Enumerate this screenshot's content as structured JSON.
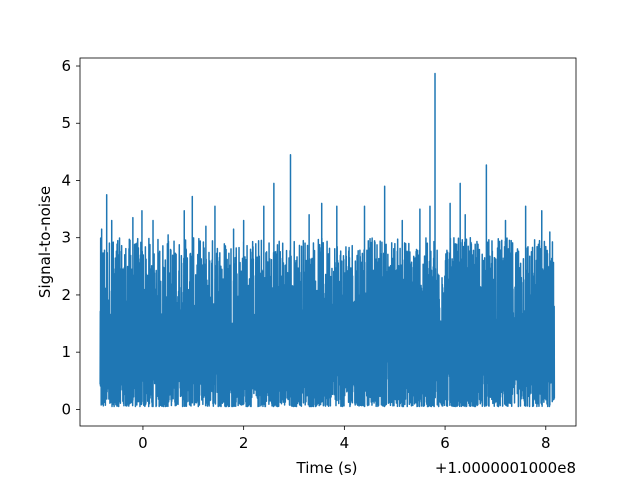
{
  "chart_data": {
    "type": "line",
    "xlabel": "Time (s)",
    "ylabel": "Signal-to-noise",
    "x_offset_label": "+1.0000001000e8",
    "xlim": [
      -1.25,
      8.6
    ],
    "ylim": [
      -0.29,
      6.14
    ],
    "x_range": [
      -0.85,
      8.17
    ],
    "noise_band": [
      0.05,
      2.6
    ],
    "xticks": [
      0,
      2,
      4,
      6,
      8
    ],
    "yticks": [
      0,
      1,
      2,
      3,
      4,
      5,
      6
    ],
    "grid": false,
    "line_color": "#1f77b4",
    "series": [
      {
        "peaks": [
          {
            "x": -0.82,
            "y": 3.15
          },
          {
            "x": -0.72,
            "y": 3.75
          },
          {
            "x": -0.62,
            "y": 3.3
          },
          {
            "x": -0.5,
            "y": 2.95
          },
          {
            "x": -0.2,
            "y": 3.35
          },
          {
            "x": -0.02,
            "y": 3.47
          },
          {
            "x": 0.2,
            "y": 3.3
          },
          {
            "x": 0.5,
            "y": 3.05
          },
          {
            "x": 0.82,
            "y": 3.47
          },
          {
            "x": 0.98,
            "y": 3.72
          },
          {
            "x": 1.25,
            "y": 3.2
          },
          {
            "x": 1.43,
            "y": 3.55
          },
          {
            "x": 1.8,
            "y": 3.15
          },
          {
            "x": 2.0,
            "y": 3.3
          },
          {
            "x": 2.4,
            "y": 3.55
          },
          {
            "x": 2.6,
            "y": 3.95
          },
          {
            "x": 2.93,
            "y": 4.45
          },
          {
            "x": 3.3,
            "y": 3.4
          },
          {
            "x": 3.55,
            "y": 3.6
          },
          {
            "x": 3.85,
            "y": 3.55
          },
          {
            "x": 4.4,
            "y": 3.55
          },
          {
            "x": 4.8,
            "y": 3.9
          },
          {
            "x": 5.15,
            "y": 3.3
          },
          {
            "x": 5.5,
            "y": 3.5
          },
          {
            "x": 5.7,
            "y": 3.55
          },
          {
            "x": 5.8,
            "y": 5.87
          },
          {
            "x": 6.1,
            "y": 3.6
          },
          {
            "x": 6.3,
            "y": 3.95
          },
          {
            "x": 6.4,
            "y": 3.4
          },
          {
            "x": 6.82,
            "y": 4.27
          },
          {
            "x": 7.2,
            "y": 3.3
          },
          {
            "x": 7.6,
            "y": 3.55
          },
          {
            "x": 7.92,
            "y": 3.47
          },
          {
            "x": 8.08,
            "y": 3.1
          }
        ]
      }
    ]
  }
}
